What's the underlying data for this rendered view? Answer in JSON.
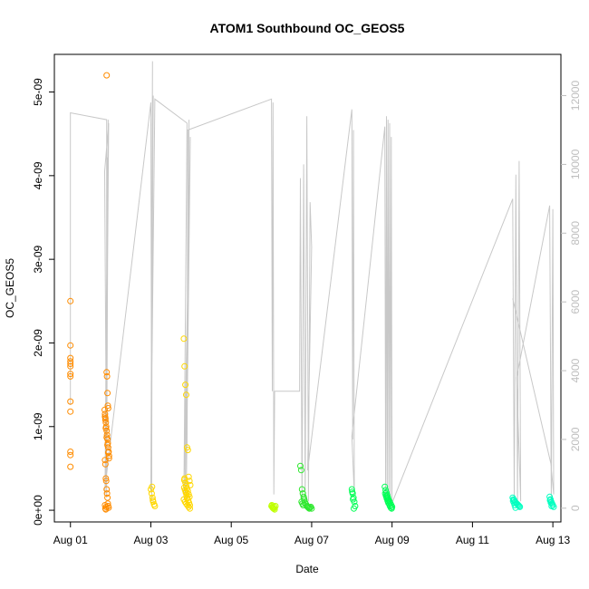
{
  "chart_data": {
    "type": "scatter",
    "title": "ATOM1 Southbound OC_GEOS5",
    "xlabel": "Date",
    "ylabel": "OC_GEOS5",
    "x_ticks": [
      "Aug 01",
      "Aug 03",
      "Aug 05",
      "Aug 07",
      "Aug 09",
      "Aug 11",
      "Aug 13"
    ],
    "y_ticks": [
      "0e+00",
      "1e-09",
      "2e-09",
      "3e-09",
      "4e-09",
      "5e-09"
    ],
    "y_right_ticks": [
      "0",
      "2000",
      "4000",
      "6000",
      "8000",
      "10000",
      "12000"
    ],
    "xlim_days": [
      30.6,
      43.2
    ],
    "ylim": [
      -1.4e-10,
      5.45e-09
    ],
    "ylim_right": [
      -400,
      13200
    ],
    "grid": false,
    "colors": {
      "altitude_line": "#c8c8c8",
      "axis": "#000000",
      "right_axis": "#bebebe",
      "series": [
        "#ff8c00",
        "#ffd700",
        "#bfff00",
        "#2ee82e",
        "#00ff55",
        "#00ffc0"
      ]
    },
    "series": [
      {
        "color": "#ff8c00",
        "x": [
          31.0,
          31.0,
          31.0,
          31.0,
          31.0,
          31.0,
          31.0,
          31.0,
          31.0,
          31.0,
          31.0,
          31.0,
          31.0,
          31.85,
          31.86,
          31.87,
          31.88,
          31.89,
          31.9,
          31.91,
          31.92,
          31.93,
          31.94,
          31.95,
          31.96,
          31.86,
          31.87,
          31.88,
          31.89,
          31.9,
          31.91,
          31.92,
          31.93,
          31.94,
          31.95,
          31.86,
          31.87,
          31.88,
          31.89,
          31.9,
          31.91,
          31.92,
          31.93,
          31.94,
          31.86,
          31.87,
          31.88,
          31.9,
          31.92,
          31.94,
          31.96,
          31.9
        ],
        "y": [
          2.5e-09,
          1.97e-09,
          1.82e-09,
          1.78e-09,
          1.72e-09,
          1.63e-09,
          1.3e-09,
          1.18e-09,
          7e-10,
          6.6e-10,
          5.2e-10,
          1.6e-09,
          1.75e-09,
          1.2e-09,
          1.15e-09,
          1.1e-09,
          1.05e-09,
          1e-09,
          9.5e-10,
          9e-10,
          8.5e-10,
          8e-10,
          7.5e-10,
          7e-10,
          6.5e-10,
          6e-10,
          5.5e-10,
          3.8e-10,
          3.5e-10,
          2.5e-10,
          2e-10,
          1.5e-10,
          8e-11,
          5e-11,
          3e-11,
          6e-11,
          2e-11,
          1e-11,
          4e-11,
          1.65e-09,
          1.6e-09,
          1.4e-09,
          1.25e-09,
          1.22e-09,
          1.12e-09,
          1.08e-09,
          9.8e-10,
          8.7e-10,
          7.8e-10,
          6.9e-10,
          6.2e-10,
          5.2e-09
        ]
      },
      {
        "color": "#ffd700",
        "x": [
          33.0,
          33.02,
          33.04,
          33.06,
          33.08,
          33.1,
          33.03,
          33.05,
          33.82,
          33.84,
          33.86,
          33.88,
          33.9,
          33.92,
          33.94,
          33.96,
          33.98,
          33.83,
          33.85,
          33.87,
          33.89,
          33.91,
          33.93,
          33.95,
          33.97,
          33.84,
          33.86,
          33.88,
          33.9,
          33.92,
          33.94,
          33.96,
          33.82,
          33.85,
          33.88,
          33.91,
          33.94,
          33.97,
          33.83,
          33.87,
          33.9
        ],
        "y": [
          2.5e-10,
          2e-10,
          1.5e-10,
          1e-10,
          7e-11,
          5e-11,
          2.8e-10,
          1.2e-10,
          2.05e-09,
          1.72e-09,
          1.5e-09,
          1.38e-09,
          7.5e-10,
          7.2e-10,
          4e-10,
          3.5e-10,
          3e-10,
          2.7e-10,
          2.4e-10,
          2.1e-10,
          1.8e-10,
          1.5e-10,
          1.2e-10,
          9e-11,
          6e-11,
          3.8e-10,
          3.3e-10,
          2.9e-10,
          2.6e-10,
          2.3e-10,
          1.9e-10,
          1.6e-10,
          1.3e-10,
          1e-10,
          8e-11,
          6e-11,
          4e-11,
          2e-11,
          3.6e-10,
          2.2e-10,
          1.4e-10
        ]
      },
      {
        "color": "#bfff00",
        "x": [
          36.0,
          36.02,
          36.04,
          36.06,
          36.08,
          36.1,
          36.01,
          36.03,
          36.05,
          36.07
        ],
        "y": [
          5e-11,
          4e-11,
          3e-11,
          2e-11,
          1e-11,
          5e-11,
          6e-11,
          3e-11,
          2e-11,
          4e-11
        ]
      },
      {
        "color": "#2ee82e",
        "x": [
          36.72,
          36.74,
          36.76,
          36.78,
          36.8,
          36.82,
          36.84,
          36.86,
          36.88,
          36.9,
          36.92,
          36.94,
          36.96,
          36.98,
          37.0,
          36.75,
          36.77,
          36.79,
          36.81
        ],
        "y": [
          5.3e-10,
          4.8e-10,
          2.5e-10,
          2e-10,
          1.6e-10,
          1.2e-10,
          9e-11,
          7e-11,
          5e-11,
          4e-11,
          3e-11,
          2e-11,
          3e-11,
          4e-11,
          2e-11,
          1e-10,
          8e-11,
          6e-11,
          1.4e-10
        ]
      },
      {
        "color": "#00ff55",
        "x": [
          38.0,
          38.02,
          38.04,
          38.06,
          38.08,
          38.01,
          38.03,
          38.05,
          38.82,
          38.84,
          38.86,
          38.88,
          38.9,
          38.92,
          38.94,
          38.96,
          38.98,
          39.0,
          38.83,
          38.85,
          38.87,
          38.89,
          38.91,
          38.93,
          38.95,
          38.97,
          38.99,
          38.86,
          38.9,
          38.94
        ],
        "y": [
          2.5e-10,
          2e-10,
          1.5e-10,
          1e-10,
          5e-11,
          2.2e-10,
          1.3e-10,
          2e-11,
          2.8e-10,
          2.4e-10,
          2.1e-10,
          1.8e-10,
          1.5e-10,
          1.2e-10,
          1e-10,
          8e-11,
          6e-11,
          4e-11,
          2e-10,
          1.7e-10,
          1.4e-10,
          1.1e-10,
          9e-11,
          7e-11,
          5e-11,
          3e-11,
          2e-11,
          1.6e-10,
          1.3e-10,
          1e-10
        ]
      },
      {
        "color": "#00ffc0",
        "x": [
          42.0,
          42.02,
          42.04,
          42.06,
          42.08,
          42.1,
          42.12,
          42.14,
          42.16,
          42.18,
          42.01,
          42.03,
          42.05,
          42.07,
          42.92,
          42.94,
          42.96,
          42.98,
          43.0,
          43.02,
          42.93,
          42.95,
          42.97
        ],
        "y": [
          1.5e-10,
          1.3e-10,
          1.2e-10,
          1e-10,
          9e-11,
          8e-11,
          7e-11,
          6e-11,
          5e-11,
          4e-11,
          1.1e-10,
          9e-11,
          6e-11,
          3e-11,
          1.6e-10,
          1.3e-10,
          1e-10,
          8e-11,
          6e-11,
          4e-11,
          1.2e-10,
          9e-11,
          5e-11
        ]
      }
    ],
    "altitude_line": {
      "x": [
        31.0,
        31.0,
        31.0,
        31.0,
        31.9,
        31.9,
        31.85,
        31.95,
        31.88,
        31.92,
        31.86,
        31.94,
        31.9,
        33.0,
        33.02,
        33.04,
        33.0,
        33.06,
        33.02,
        33.1,
        33.9,
        33.82,
        33.96,
        33.85,
        33.98,
        33.88,
        33.95,
        33.9,
        33.92,
        36.0,
        36.02,
        36.04,
        36.06,
        36.08,
        36.7,
        36.72,
        36.76,
        36.8,
        36.84,
        36.88,
        36.92,
        36.96,
        37.0,
        36.9,
        38.0,
        38.02,
        38.04,
        38.06,
        38.0,
        38.82,
        38.84,
        38.86,
        38.88,
        38.9,
        38.92,
        38.94,
        38.96,
        38.98,
        39.0,
        42.0,
        42.04,
        42.08,
        42.12,
        42.16,
        42.2,
        42.1,
        42.92,
        42.96,
        43.0,
        43.02,
        42.95,
        42.0
      ],
      "y": [
        11400,
        7000,
        3000,
        11500,
        11300,
        300,
        9800,
        11200,
        600,
        10200,
        400,
        11300,
        1000,
        11800,
        200,
        13000,
        500,
        12000,
        3400,
        11900,
        11200,
        300,
        9400,
        400,
        10800,
        200,
        11300,
        1800,
        11000,
        11900,
        3400,
        11800,
        400,
        3400,
        3400,
        9600,
        100,
        10000,
        300,
        11400,
        200,
        8900,
        7600,
        1100,
        11600,
        2000,
        11000,
        400,
        2100,
        11100,
        100,
        11400,
        300,
        11300,
        200,
        11200,
        150,
        10800,
        150,
        9000,
        200,
        9700,
        100,
        10100,
        200,
        3800,
        8800,
        200,
        8700,
        400,
        1300,
        6100
      ]
    }
  }
}
